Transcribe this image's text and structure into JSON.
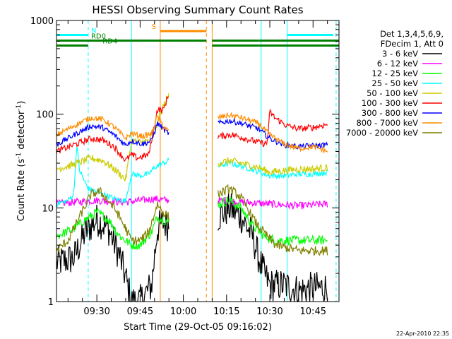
{
  "chart_data": {
    "type": "line",
    "title": "HESSI Observing Summary Count Rates",
    "xlabel": "Start Time (29-Oct-05 09:16:02)",
    "ylabel": "Count Rate (s⁻¹ detector⁻¹)",
    "ylabel_parts": {
      "main": "Count Rate (s",
      "sup1": "-1",
      "mid": " detector",
      "sup2": "-1",
      "end": ")"
    },
    "y_scale": "log",
    "xlim": [
      "09:16",
      "10:54"
    ],
    "ylim": [
      1,
      1000
    ],
    "x_ticks": [
      "09:30",
      "09:45",
      "10:00",
      "10:15",
      "10:30",
      "10:45"
    ],
    "y_ticks": [
      {
        "value": 1,
        "label": "1"
      },
      {
        "value": 10,
        "label": "10"
      },
      {
        "value": 100,
        "label": "100"
      },
      {
        "value": 1000,
        "label": "1000"
      }
    ],
    "legend_header": [
      "Det 1,3,4,5,6,9,",
      "FDecim 1, Att 0"
    ],
    "legend_placement": "right",
    "gap": [
      "09:56",
      "10:12"
    ],
    "series": [
      {
        "name": "3 - 6 keV",
        "color": "#000000",
        "noise": 0.18,
        "points": [
          [
            "09:16",
            2.6
          ],
          [
            "09:22",
            2.9
          ],
          [
            "09:26",
            5.5
          ],
          [
            "09:30",
            7.5
          ],
          [
            "09:34",
            6
          ],
          [
            "09:38",
            3
          ],
          [
            "09:40",
            1.8
          ],
          [
            "09:42",
            1
          ],
          [
            "09:45",
            1
          ],
          [
            "09:49",
            1.5
          ],
          [
            "09:51",
            6
          ],
          [
            "09:53",
            7
          ],
          [
            "09:55",
            6.5
          ],
          [
            "10:12",
            8
          ],
          [
            "10:16",
            10
          ],
          [
            "10:20",
            8
          ],
          [
            "10:24",
            5
          ],
          [
            "10:26",
            3
          ],
          [
            "10:28",
            2
          ],
          [
            "10:30",
            1.5
          ],
          [
            "10:35",
            1.5
          ],
          [
            "10:40",
            1.3
          ],
          [
            "10:45",
            1.4
          ],
          [
            "10:50",
            1.4
          ]
        ]
      },
      {
        "name": "6 - 12 keV",
        "color": "#ff00ff",
        "noise": 0.04,
        "points": [
          [
            "09:16",
            11
          ],
          [
            "09:22",
            11.5
          ],
          [
            "09:30",
            12
          ],
          [
            "09:40",
            11.5
          ],
          [
            "09:45",
            12
          ],
          [
            "09:50",
            12.5
          ],
          [
            "09:55",
            12
          ],
          [
            "10:12",
            12
          ],
          [
            "10:20",
            11.5
          ],
          [
            "10:30",
            11
          ],
          [
            "10:40",
            10.5
          ],
          [
            "10:50",
            11
          ]
        ]
      },
      {
        "name": "12 - 25 keV",
        "color": "#00ff00",
        "noise": 0.05,
        "points": [
          [
            "09:16",
            5
          ],
          [
            "09:22",
            6
          ],
          [
            "09:26",
            7.5
          ],
          [
            "09:30",
            9
          ],
          [
            "09:34",
            7.5
          ],
          [
            "09:38",
            5
          ],
          [
            "09:42",
            4
          ],
          [
            "09:45",
            4
          ],
          [
            "09:49",
            5.5
          ],
          [
            "09:51",
            8
          ],
          [
            "09:53",
            7.5
          ],
          [
            "09:55",
            7
          ],
          [
            "10:12",
            11
          ],
          [
            "10:16",
            12
          ],
          [
            "10:20",
            10
          ],
          [
            "10:24",
            6.5
          ],
          [
            "10:28",
            5
          ],
          [
            "10:32",
            4.5
          ],
          [
            "10:40",
            4.5
          ],
          [
            "10:50",
            4.5
          ]
        ]
      },
      {
        "name": "25 - 50 keV",
        "color": "#00ffff",
        "noise": 0.03,
        "points": [
          [
            "09:16",
            11
          ],
          [
            "09:20",
            12
          ],
          [
            "09:22",
            14
          ],
          [
            "09:23",
            48
          ],
          [
            "09:24",
            25
          ],
          [
            "09:27",
            16
          ],
          [
            "09:32",
            14
          ],
          [
            "09:38",
            12
          ],
          [
            "09:40",
            12
          ],
          [
            "09:42",
            23
          ],
          [
            "09:45",
            22
          ],
          [
            "09:48",
            23
          ],
          [
            "09:50",
            27
          ],
          [
            "09:53",
            30
          ],
          [
            "09:55",
            32
          ],
          [
            "10:12",
            28
          ],
          [
            "10:16",
            30
          ],
          [
            "10:20",
            28
          ],
          [
            "10:25",
            25
          ],
          [
            "10:30",
            22
          ],
          [
            "10:35",
            22
          ],
          [
            "10:40",
            23
          ],
          [
            "10:45",
            23
          ],
          [
            "10:50",
            24
          ]
        ]
      },
      {
        "name": "50 - 100 keV",
        "color": "#cccc00",
        "noise": 0.04,
        "points": [
          [
            "09:16",
            26
          ],
          [
            "09:22",
            29
          ],
          [
            "09:28",
            34
          ],
          [
            "09:32",
            32
          ],
          [
            "09:36",
            26
          ],
          [
            "09:40",
            20
          ],
          [
            "09:42",
            52
          ],
          [
            "09:45",
            50
          ],
          [
            "09:48",
            52
          ],
          [
            "09:50",
            65
          ],
          [
            "09:53",
            120
          ],
          [
            "09:55",
            160
          ],
          [
            "10:12",
            30
          ],
          [
            "10:16",
            32
          ],
          [
            "10:20",
            30
          ],
          [
            "10:26",
            27
          ],
          [
            "10:30",
            24
          ],
          [
            "10:35",
            25
          ],
          [
            "10:40",
            26
          ],
          [
            "10:45",
            26
          ],
          [
            "10:50",
            27
          ]
        ]
      },
      {
        "name": "100 - 300 keV",
        "color": "#ff0000",
        "noise": 0.035,
        "points": [
          [
            "09:16",
            40
          ],
          [
            "09:22",
            47
          ],
          [
            "09:28",
            55
          ],
          [
            "09:32",
            53
          ],
          [
            "09:36",
            45
          ],
          [
            "09:40",
            32
          ],
          [
            "09:42",
            37
          ],
          [
            "09:44",
            34
          ],
          [
            "09:48",
            37
          ],
          [
            "09:51",
            112
          ],
          [
            "09:53",
            110
          ],
          [
            "09:55",
            165
          ],
          [
            "10:12",
            57
          ],
          [
            "10:16",
            61
          ],
          [
            "10:20",
            57
          ],
          [
            "10:26",
            50
          ],
          [
            "10:29",
            48
          ],
          [
            "10:30",
            105
          ],
          [
            "10:32",
            90
          ],
          [
            "10:36",
            75
          ],
          [
            "10:40",
            70
          ],
          [
            "10:45",
            72
          ],
          [
            "10:50",
            78
          ]
        ]
      },
      {
        "name": "300 - 800 keV",
        "color": "#0000ff",
        "noise": 0.03,
        "points": [
          [
            "09:16",
            47
          ],
          [
            "09:22",
            60
          ],
          [
            "09:28",
            75
          ],
          [
            "09:32",
            72
          ],
          [
            "09:36",
            60
          ],
          [
            "09:40",
            47
          ],
          [
            "09:42",
            52
          ],
          [
            "09:46",
            48
          ],
          [
            "09:49",
            52
          ],
          [
            "09:51",
            80
          ],
          [
            "09:53",
            70
          ],
          [
            "09:55",
            62
          ],
          [
            "10:12",
            80
          ],
          [
            "10:16",
            85
          ],
          [
            "10:20",
            80
          ],
          [
            "10:26",
            70
          ],
          [
            "10:30",
            55
          ],
          [
            "10:35",
            47
          ],
          [
            "10:40",
            45
          ],
          [
            "10:45",
            46
          ],
          [
            "10:50",
            47
          ]
        ]
      },
      {
        "name": "800 - 7000 keV",
        "color": "#ff8c00",
        "noise": 0.03,
        "points": [
          [
            "09:16",
            60
          ],
          [
            "09:22",
            75
          ],
          [
            "09:28",
            92
          ],
          [
            "09:32",
            88
          ],
          [
            "09:36",
            73
          ],
          [
            "09:40",
            55
          ],
          [
            "09:42",
            62
          ],
          [
            "09:46",
            58
          ],
          [
            "09:49",
            62
          ],
          [
            "09:51",
            95
          ],
          [
            "09:53",
            75
          ],
          [
            "09:55",
            65
          ],
          [
            "10:12",
            92
          ],
          [
            "10:16",
            98
          ],
          [
            "10:20",
            92
          ],
          [
            "10:26",
            80
          ],
          [
            "10:30",
            60
          ],
          [
            "10:35",
            48
          ],
          [
            "10:40",
            43
          ],
          [
            "10:45",
            45
          ],
          [
            "10:50",
            40
          ]
        ]
      },
      {
        "name": "7000 - 20000 keV",
        "color": "#808000",
        "noise": 0.05,
        "points": [
          [
            "09:16",
            3.5
          ],
          [
            "09:20",
            4.5
          ],
          [
            "09:24",
            8
          ],
          [
            "09:28",
            14
          ],
          [
            "09:31",
            15
          ],
          [
            "09:34",
            12
          ],
          [
            "09:37",
            9
          ],
          [
            "09:40",
            6
          ],
          [
            "09:42",
            4.5
          ],
          [
            "09:45",
            4.5
          ],
          [
            "09:48",
            5.5
          ],
          [
            "09:51",
            11
          ],
          [
            "09:53",
            9
          ],
          [
            "09:55",
            8
          ],
          [
            "10:12",
            14
          ],
          [
            "10:16",
            16
          ],
          [
            "10:20",
            13
          ],
          [
            "10:25",
            7
          ],
          [
            "10:29",
            5
          ],
          [
            "10:32",
            4
          ],
          [
            "10:40",
            3.5
          ],
          [
            "10:50",
            3.5
          ]
        ]
      }
    ],
    "flag_bars": [
      {
        "label": "N",
        "color": "#00ffff",
        "y": 700,
        "segments": [
          [
            "09:16",
            "09:27"
          ],
          [
            "10:36",
            "10:52"
          ]
        ],
        "label_at": "09:28"
      },
      {
        "label": "S",
        "color": "#ff8c00",
        "y": 770,
        "segments": [
          [
            "09:52",
            "10:08"
          ]
        ],
        "label_at": "09:49"
      },
      {
        "label": "RD0",
        "color": "#008000",
        "y": 610,
        "segments": [
          [
            "09:16",
            "10:08"
          ],
          [
            "10:10",
            "10:26"
          ],
          [
            "10:26",
            "10:54"
          ]
        ],
        "label_at": "09:28"
      },
      {
        "label": "RD4",
        "color": "#008000",
        "y": 540,
        "segments": [
          [
            "09:16",
            "09:27"
          ],
          [
            "10:10",
            "10:26"
          ],
          [
            "10:26",
            "10:54"
          ]
        ],
        "label_at": "09:32"
      }
    ],
    "vertical_lines": [
      {
        "time": "09:16",
        "color": "#00ffff",
        "style": "solid"
      },
      {
        "time": "09:27",
        "color": "#00ffff",
        "style": "dashed"
      },
      {
        "time": "09:42",
        "color": "#00ffff",
        "style": "solid"
      },
      {
        "time": "09:52",
        "color": "#ff8c00",
        "style": "solid"
      },
      {
        "time": "10:08",
        "color": "#ff8c00",
        "style": "dashed"
      },
      {
        "time": "10:10",
        "color": "#ff8c00",
        "style": "solid"
      },
      {
        "time": "10:27",
        "color": "#00ffff",
        "style": "solid"
      },
      {
        "time": "10:36",
        "color": "#00ffff",
        "style": "solid"
      },
      {
        "time": "10:53",
        "color": "#00ffff",
        "style": "dashed"
      }
    ],
    "timestamp": "22-Apr-2010 22:35"
  }
}
